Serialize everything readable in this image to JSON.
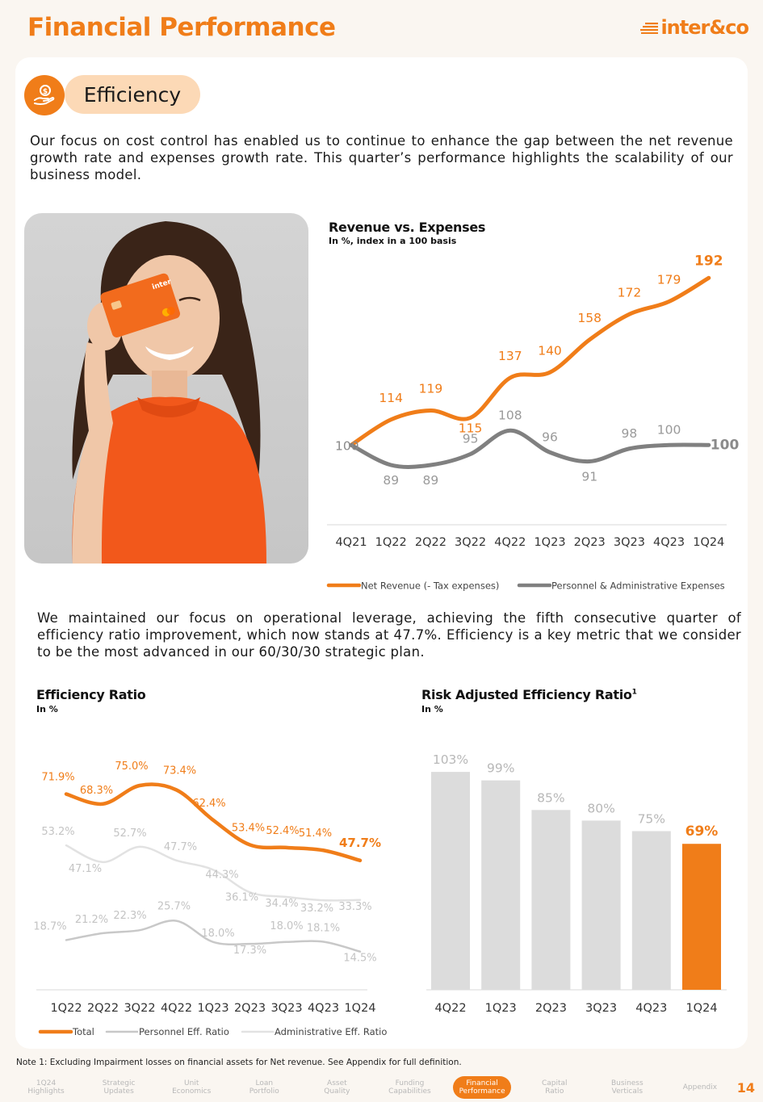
{
  "header": {
    "title": "Financial Performance",
    "brand": "inter&co"
  },
  "section": {
    "badge_label": "Efficiency"
  },
  "intro_text": "Our focus on cost control has enabled us to continue to enhance  the gap between the net revenue growth rate and expenses growth rate. This quarter’s performance highlights the scalability of our business model.",
  "middle_text": "We maintained our focus on operational leverage, achieving the fifth consecutive quarter of efficiency ratio improvement, which now stands at 47.7%. Efficiency is a key metric that we consider to be the most advanced in our 60/30/30 strategic plan.",
  "footnote": "Note 1: Excluding Impairment losses on financial assets for Net revenue. See Appendix for full definition.",
  "nav": {
    "items": [
      "1Q24\nHighlights",
      "Strategic\nUpdates",
      "Unit\nEconomics",
      "Loan\nPortfolio",
      "Asset\nQuality",
      "Funding\nCapabilities",
      "Financial\nPerformance",
      "Capital\nRatio",
      "Business\nVerticals",
      "Appendix"
    ],
    "active_index": 6,
    "page_number": "14"
  },
  "colors": {
    "orange": "#f07d19",
    "gray": "#808080",
    "light_gray": "#c8c8c8",
    "lighter_gray": "#e2e2e2",
    "bar_gray": "#dcdcdc"
  },
  "chart_data": [
    {
      "id": "revenue_vs_expenses",
      "type": "line",
      "title": "Revenue vs. Expenses",
      "subtitle": "In %, index in a 100 basis",
      "categories": [
        "4Q21",
        "1Q22",
        "2Q22",
        "3Q22",
        "4Q22",
        "1Q23",
        "2Q23",
        "3Q23",
        "4Q23",
        "1Q24"
      ],
      "series": [
        {
          "name": "Net Revenue (- Tax expenses)",
          "values": [
            100,
            114,
            119,
            115,
            137,
            140,
            158,
            172,
            179,
            192
          ],
          "color": "#f07d19"
        },
        {
          "name": "Personnel & Administrative Expenses",
          "values": [
            100,
            89,
            89,
            95,
            108,
            96,
            91,
            98,
            100,
            100
          ],
          "color": "#808080"
        }
      ],
      "legend": "bottom"
    },
    {
      "id": "efficiency_ratio",
      "type": "line",
      "title": "Efficiency Ratio",
      "subtitle": "In %",
      "categories": [
        "1Q22",
        "2Q22",
        "3Q22",
        "4Q22",
        "1Q23",
        "2Q23",
        "3Q23",
        "4Q23",
        "1Q24"
      ],
      "series": [
        {
          "name": "Total",
          "values": [
            71.9,
            68.3,
            75.0,
            73.4,
            62.4,
            53.4,
            52.4,
            51.4,
            47.7
          ],
          "labels": [
            "71.9%",
            "68.3%",
            "75.0%",
            "73.4%",
            "62.4%",
            "53.4%",
            "52.4%",
            "51.4%",
            "47.7%"
          ],
          "color": "#f07d19"
        },
        {
          "name": "Personnel Eff. Ratio",
          "values": [
            18.7,
            21.2,
            22.3,
            25.7,
            18.0,
            17.3,
            18.0,
            18.1,
            14.5
          ],
          "labels": [
            "18.7%",
            "21.2%",
            "22.3%",
            "25.7%",
            "18.0%",
            "17.3%",
            "18.0%",
            "18.1%",
            "14.5%"
          ],
          "color": "#c8c8c8"
        },
        {
          "name": "Administrative Eff. Ratio",
          "values": [
            53.2,
            47.1,
            52.7,
            47.7,
            44.3,
            36.1,
            34.4,
            33.2,
            33.3
          ],
          "labels": [
            "53.2%",
            "47.1%",
            "52.7%",
            "47.7%",
            "44.3%",
            "36.1%",
            "34.4%",
            "33.2%",
            "33.3%"
          ],
          "color": "#e2e2e2"
        }
      ],
      "legend": "bottom"
    },
    {
      "id": "risk_adjusted_efficiency",
      "type": "bar",
      "title": "Risk Adjusted Efficiency Ratio",
      "title_sup": "1",
      "subtitle": "In %",
      "categories": [
        "4Q22",
        "1Q23",
        "2Q23",
        "3Q23",
        "4Q23",
        "1Q24"
      ],
      "values": [
        103,
        99,
        85,
        80,
        75,
        69
      ],
      "labels": [
        "103%",
        "99%",
        "85%",
        "80%",
        "75%",
        "69%"
      ],
      "highlight_index": 5
    }
  ]
}
